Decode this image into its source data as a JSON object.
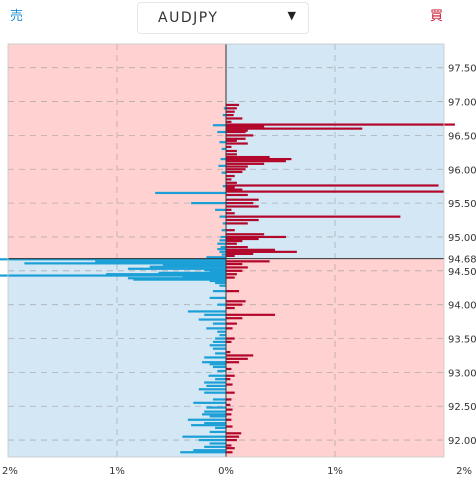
{
  "header": {
    "sell_label": "売",
    "buy_label": "買"
  },
  "pair_select": {
    "value": "AUDJPY",
    "caret": "▼"
  },
  "chart_data": {
    "type": "bar",
    "orientation": "horizontal",
    "current_price": 94.68,
    "y_ticks": [
      "97.50",
      "97.00",
      "96.50",
      "96.00",
      "95.50",
      "95.00",
      "94.50",
      "94.00",
      "93.50",
      "93.00",
      "92.50",
      "92.00"
    ],
    "y_tick_values": [
      97.5,
      97.0,
      96.5,
      96.0,
      95.5,
      95.0,
      94.5,
      94.0,
      93.5,
      93.0,
      92.5,
      92.0
    ],
    "current_label": "94.68",
    "x_ticks": [
      "2%",
      "1%",
      "0%",
      "1%",
      "2%"
    ],
    "x_tick_values": [
      -2,
      -1,
      0,
      1,
      2
    ],
    "xlim": [
      -2,
      2
    ],
    "ylim": [
      91.75,
      97.85
    ],
    "grid": true,
    "colors": {
      "sell": "#1a9fd6",
      "buy": "#b3062b",
      "pink_zone": "#ffd1d1",
      "blue_zone": "#d3e7f5",
      "price_line": "#333333"
    },
    "series": [
      {
        "name": "売",
        "side": "left",
        "points": [
          [
            96.9,
            0.02
          ],
          [
            96.8,
            0.03
          ],
          [
            96.65,
            0.12
          ],
          [
            96.55,
            0.08
          ],
          [
            96.4,
            0.06
          ],
          [
            96.3,
            0.04
          ],
          [
            96.15,
            0.05
          ],
          [
            96.05,
            0.07
          ],
          [
            95.95,
            0.04
          ],
          [
            95.75,
            0.03
          ],
          [
            95.65,
            0.65
          ],
          [
            95.5,
            0.32
          ],
          [
            95.4,
            0.1
          ],
          [
            95.3,
            0.06
          ],
          [
            95.2,
            0.03
          ],
          [
            95.1,
            0.04
          ],
          [
            95.0,
            0.05
          ],
          [
            94.95,
            0.06
          ],
          [
            94.9,
            0.08
          ],
          [
            94.85,
            0.05
          ],
          [
            94.82,
            0.08
          ],
          [
            94.78,
            0.06
          ],
          [
            94.74,
            0.04
          ],
          [
            94.7,
            0.18
          ],
          [
            94.67,
            2.1
          ],
          [
            94.64,
            1.2
          ],
          [
            94.61,
            1.85
          ],
          [
            94.58,
            0.58
          ],
          [
            94.56,
            0.7
          ],
          [
            94.53,
            0.9
          ],
          [
            94.51,
            0.2
          ],
          [
            94.49,
            0.15
          ],
          [
            94.47,
            0.62
          ],
          [
            94.45,
            1.1
          ],
          [
            94.43,
            2.1
          ],
          [
            94.41,
            0.4
          ],
          [
            94.39,
            0.9
          ],
          [
            94.37,
            0.85
          ],
          [
            94.35,
            0.15
          ],
          [
            94.32,
            0.1
          ],
          [
            94.28,
            0.06
          ],
          [
            94.2,
            0.12
          ],
          [
            94.1,
            0.15
          ],
          [
            94.0,
            0.08
          ],
          [
            93.9,
            0.35
          ],
          [
            93.85,
            0.2
          ],
          [
            93.78,
            0.25
          ],
          [
            93.72,
            0.12
          ],
          [
            93.65,
            0.18
          ],
          [
            93.6,
            0.08
          ],
          [
            93.55,
            0.06
          ],
          [
            93.5,
            0.1
          ],
          [
            93.45,
            0.12
          ],
          [
            93.4,
            0.15
          ],
          [
            93.35,
            0.12
          ],
          [
            93.28,
            0.1
          ],
          [
            93.22,
            0.2
          ],
          [
            93.15,
            0.22
          ],
          [
            93.12,
            0.15
          ],
          [
            93.08,
            0.12
          ],
          [
            93.02,
            0.08
          ],
          [
            92.95,
            0.16
          ],
          [
            92.9,
            0.1
          ],
          [
            92.85,
            0.2
          ],
          [
            92.8,
            0.18
          ],
          [
            92.75,
            0.25
          ],
          [
            92.7,
            0.2
          ],
          [
            92.6,
            0.12
          ],
          [
            92.55,
            0.3
          ],
          [
            92.48,
            0.18
          ],
          [
            92.42,
            0.2
          ],
          [
            92.38,
            0.22
          ],
          [
            92.35,
            0.15
          ],
          [
            92.3,
            0.35
          ],
          [
            92.25,
            0.2
          ],
          [
            92.22,
            0.32
          ],
          [
            92.18,
            0.1
          ],
          [
            92.12,
            0.15
          ],
          [
            92.05,
            0.4
          ],
          [
            92.0,
            0.25
          ],
          [
            91.95,
            0.15
          ],
          [
            91.9,
            0.2
          ],
          [
            91.85,
            0.3
          ],
          [
            91.82,
            0.42
          ]
        ]
      },
      {
        "name": "買",
        "side": "right",
        "points": [
          [
            96.95,
            0.12
          ],
          [
            96.9,
            0.1
          ],
          [
            96.85,
            0.08
          ],
          [
            96.8,
            0.07
          ],
          [
            96.75,
            0.15
          ],
          [
            96.7,
            0.05
          ],
          [
            96.66,
            2.1
          ],
          [
            96.63,
            0.35
          ],
          [
            96.6,
            1.25
          ],
          [
            96.57,
            0.2
          ],
          [
            96.55,
            0.18
          ],
          [
            96.5,
            0.25
          ],
          [
            96.45,
            0.18
          ],
          [
            96.42,
            0.1
          ],
          [
            96.38,
            0.2
          ],
          [
            96.33,
            0.05
          ],
          [
            96.27,
            0.1
          ],
          [
            96.22,
            0.1
          ],
          [
            96.18,
            0.4
          ],
          [
            96.15,
            0.6
          ],
          [
            96.12,
            0.55
          ],
          [
            96.08,
            0.35
          ],
          [
            96.04,
            0.2
          ],
          [
            96.0,
            0.18
          ],
          [
            95.96,
            0.15
          ],
          [
            95.9,
            0.08
          ],
          [
            95.85,
            0.05
          ],
          [
            95.8,
            0.1
          ],
          [
            95.76,
            1.95
          ],
          [
            95.73,
            0.08
          ],
          [
            95.7,
            0.15
          ],
          [
            95.67,
            2.0
          ],
          [
            95.62,
            0.2
          ],
          [
            95.55,
            0.3
          ],
          [
            95.5,
            0.25
          ],
          [
            95.45,
            0.3
          ],
          [
            95.4,
            0.05
          ],
          [
            95.35,
            0.08
          ],
          [
            95.3,
            1.6
          ],
          [
            95.25,
            0.3
          ],
          [
            95.2,
            0.2
          ],
          [
            95.1,
            0.08
          ],
          [
            95.04,
            0.35
          ],
          [
            95.0,
            0.55
          ],
          [
            94.97,
            0.3
          ],
          [
            94.94,
            0.15
          ],
          [
            94.9,
            0.1
          ],
          [
            94.85,
            0.2
          ],
          [
            94.81,
            0.45
          ],
          [
            94.78,
            0.65
          ],
          [
            94.75,
            0.25
          ],
          [
            94.72,
            0.08
          ],
          [
            94.64,
            0.4
          ],
          [
            94.6,
            0.15
          ],
          [
            94.55,
            0.2
          ],
          [
            94.5,
            0.15
          ],
          [
            94.45,
            0.1
          ],
          [
            94.4,
            0.08
          ],
          [
            94.2,
            0.12
          ],
          [
            94.05,
            0.18
          ],
          [
            94.0,
            0.15
          ],
          [
            93.95,
            0.08
          ],
          [
            93.85,
            0.45
          ],
          [
            93.8,
            0.15
          ],
          [
            93.72,
            0.1
          ],
          [
            93.65,
            0.06
          ],
          [
            93.5,
            0.08
          ],
          [
            93.45,
            0.05
          ],
          [
            93.3,
            0.04
          ],
          [
            93.25,
            0.25
          ],
          [
            93.2,
            0.2
          ],
          [
            93.15,
            0.12
          ],
          [
            93.05,
            0.05
          ],
          [
            92.95,
            0.08
          ],
          [
            92.9,
            0.04
          ],
          [
            92.82,
            0.06
          ],
          [
            92.7,
            0.08
          ],
          [
            92.6,
            0.05
          ],
          [
            92.52,
            0.04
          ],
          [
            92.45,
            0.06
          ],
          [
            92.38,
            0.05
          ],
          [
            92.3,
            0.05
          ],
          [
            92.2,
            0.06
          ],
          [
            92.1,
            0.14
          ],
          [
            92.05,
            0.12
          ],
          [
            92.0,
            0.1
          ],
          [
            91.92,
            0.05
          ],
          [
            91.88,
            0.08
          ],
          [
            91.82,
            0.06
          ]
        ]
      }
    ]
  }
}
